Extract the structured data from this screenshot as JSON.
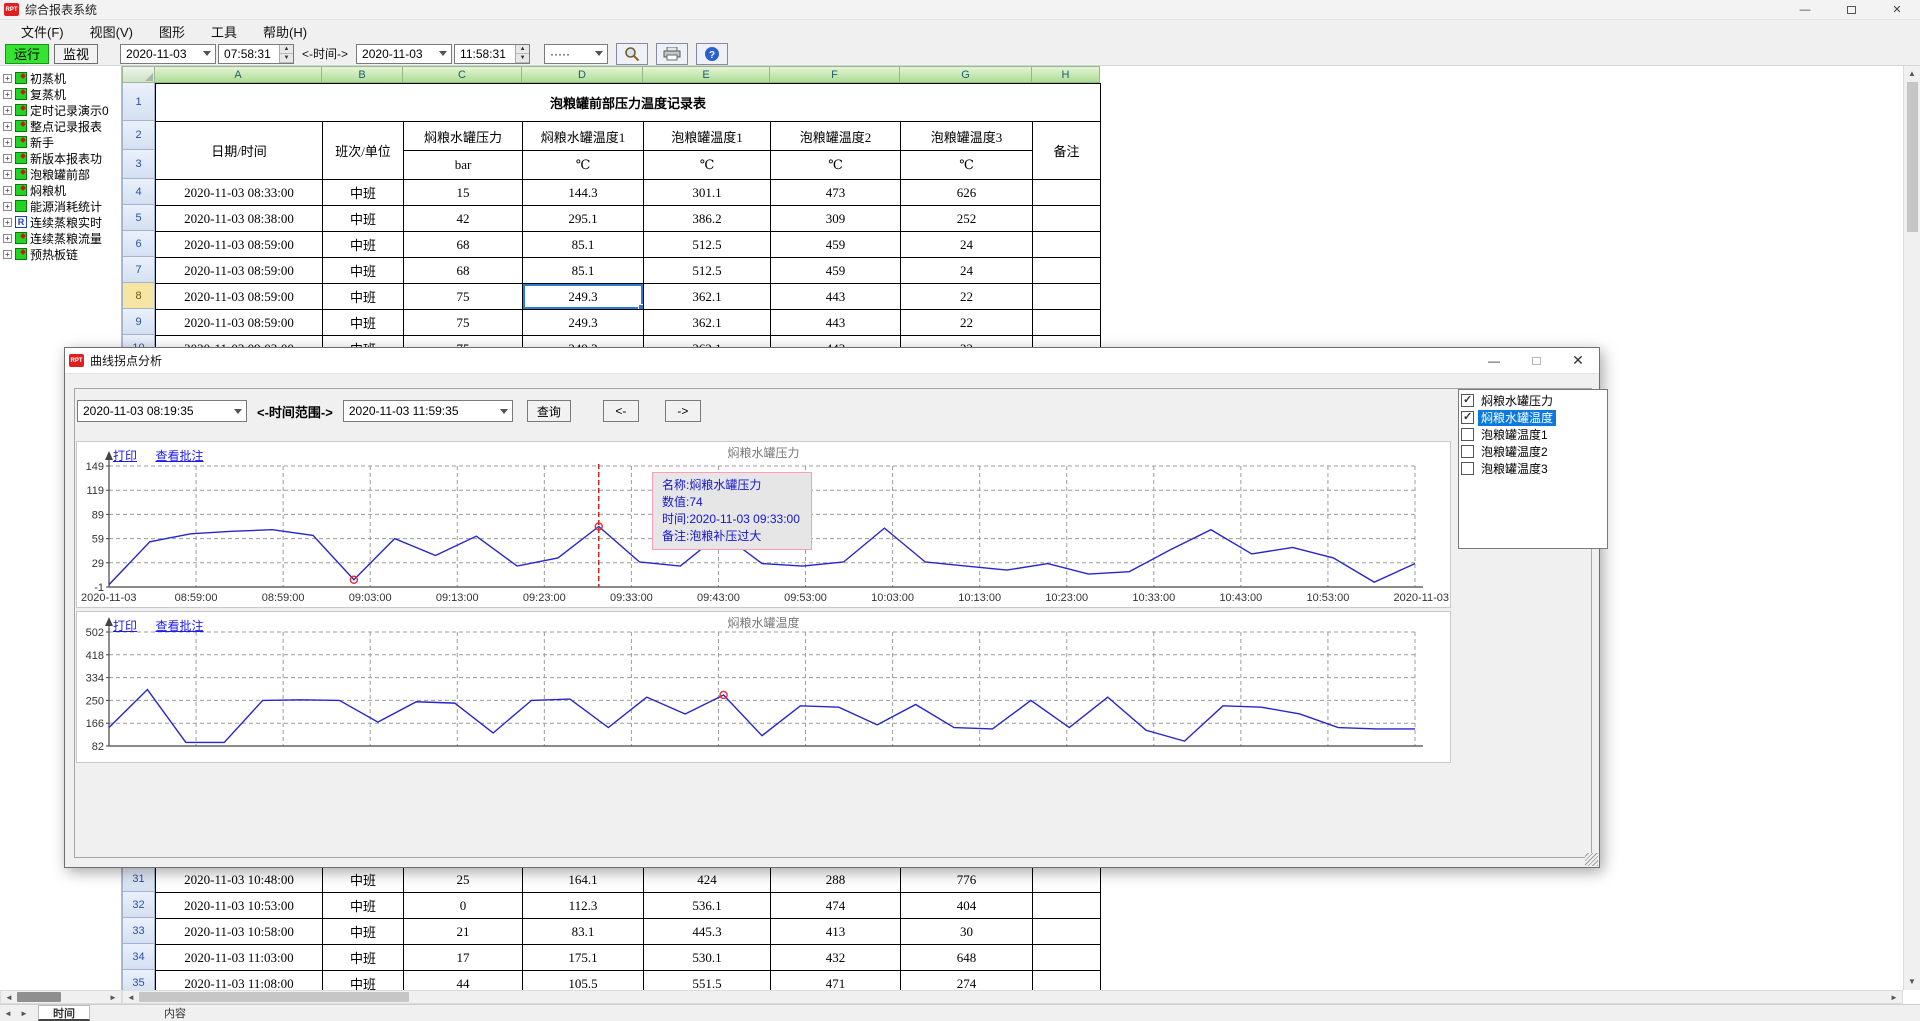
{
  "window": {
    "title": "综合报表系统"
  },
  "menu": {
    "items": [
      "文件(F)",
      "视图(V)",
      "图形",
      "工具",
      "帮助(H)"
    ]
  },
  "toolbar": {
    "run_label": "运行",
    "monitor_label": "监视",
    "start_date": "2020-11-03",
    "start_time": "07:58:31",
    "time_label": "<-时间->",
    "end_date": "2020-11-03",
    "end_time": "11:58:31",
    "style_combo": "·····",
    "icons": [
      "search-icon",
      "printer-icon",
      "help-icon"
    ]
  },
  "sidebar": {
    "items": [
      {
        "label": "初蒸机",
        "icon": "report"
      },
      {
        "label": "复蒸机",
        "icon": "report"
      },
      {
        "label": "定时记录演示0",
        "icon": "report"
      },
      {
        "label": "整点记录报表",
        "icon": "report"
      },
      {
        "label": "新手",
        "icon": "report"
      },
      {
        "label": "新版本报表功",
        "icon": "report"
      },
      {
        "label": "泡粮罐前部",
        "icon": "report"
      },
      {
        "label": "焖粮机",
        "icon": "report"
      },
      {
        "label": "能源消耗统计",
        "icon": "plain"
      },
      {
        "label": "连续蒸粮实时",
        "icon": "r"
      },
      {
        "label": "连续蒸粮流量",
        "icon": "report"
      },
      {
        "label": "预热板链",
        "icon": "report"
      }
    ]
  },
  "sheet": {
    "col_letters": [
      "A",
      "B",
      "C",
      "D",
      "E",
      "F",
      "G",
      "H"
    ],
    "title": "泡粮罐前部压力温度记录表",
    "headers": [
      "日期/时间",
      "班次/单位",
      "焖粮水罐压力",
      "焖粮水罐温度1",
      "泡粮罐温度1",
      "泡粮罐温度2",
      "泡粮罐温度3",
      "备注"
    ],
    "units": [
      "bar",
      "℃",
      "℃",
      "℃",
      "℃"
    ],
    "selection": {
      "row_number": 8,
      "col": 3
    },
    "top_rows": [
      {
        "n": "4",
        "cells": [
          "2020-11-03 08:33:00",
          "中班",
          "15",
          "144.3",
          "301.1",
          "473",
          "626",
          ""
        ]
      },
      {
        "n": "5",
        "cells": [
          "2020-11-03 08:38:00",
          "中班",
          "42",
          "295.1",
          "386.2",
          "309",
          "252",
          ""
        ]
      },
      {
        "n": "6",
        "cells": [
          "2020-11-03 08:59:00",
          "中班",
          "68",
          "85.1",
          "512.5",
          "459",
          "24",
          ""
        ]
      },
      {
        "n": "7",
        "cells": [
          "2020-11-03 08:59:00",
          "中班",
          "68",
          "85.1",
          "512.5",
          "459",
          "24",
          ""
        ]
      },
      {
        "n": "8",
        "cells": [
          "2020-11-03 08:59:00",
          "中班",
          "75",
          "249.3",
          "362.1",
          "443",
          "22",
          ""
        ]
      },
      {
        "n": "9",
        "cells": [
          "2020-11-03 08:59:00",
          "中班",
          "75",
          "249.3",
          "362.1",
          "443",
          "22",
          ""
        ]
      },
      {
        "n": "10",
        "cells": [
          "2020-11-03 09:03:00",
          "中班",
          "75",
          "249.3",
          "362.1",
          "443",
          "22",
          ""
        ]
      }
    ],
    "bottom_rows": [
      {
        "n": "31",
        "cells": [
          "2020-11-03 10:48:00",
          "中班",
          "25",
          "164.1",
          "424",
          "288",
          "776",
          ""
        ]
      },
      {
        "n": "32",
        "cells": [
          "2020-11-03 10:53:00",
          "中班",
          "0",
          "112.3",
          "536.1",
          "474",
          "404",
          ""
        ]
      },
      {
        "n": "33",
        "cells": [
          "2020-11-03 10:58:00",
          "中班",
          "21",
          "83.1",
          "445.3",
          "413",
          "30",
          ""
        ]
      },
      {
        "n": "34",
        "cells": [
          "2020-11-03 11:03:00",
          "中班",
          "17",
          "175.1",
          "530.1",
          "432",
          "648",
          ""
        ]
      },
      {
        "n": "35",
        "cells": [
          "2020-11-03 11:08:00",
          "中班",
          "44",
          "105.5",
          "551.5",
          "471",
          "274",
          ""
        ]
      }
    ]
  },
  "bottom_tabs": {
    "items": [
      "时间",
      "内容"
    ],
    "active": 0
  },
  "dialog": {
    "title": "曲线拐点分析",
    "start_datetime": "2020-11-03 08:19:35",
    "range_label": "<-时间范围->",
    "end_datetime": "2020-11-03 11:59:35",
    "query_label": "查询",
    "prev_label": "<-",
    "next_label": "->",
    "print_label": "打印",
    "notes_label": "查看批注",
    "legend": {
      "items": [
        {
          "label": "焖粮水罐压力",
          "checked": true,
          "selected": false
        },
        {
          "label": "焖粮水罐温度",
          "checked": true,
          "selected": true
        },
        {
          "label": "泡粮罐温度1",
          "checked": false,
          "selected": false
        },
        {
          "label": "泡粮罐温度2",
          "checked": false,
          "selected": false
        },
        {
          "label": "泡粮罐温度3",
          "checked": false,
          "selected": false
        }
      ]
    }
  },
  "chart_data": [
    {
      "type": "line",
      "title": "焖粮水罐压力",
      "ylim": [
        -1,
        149
      ],
      "yticks": [
        149,
        119,
        89,
        59,
        29,
        -1
      ],
      "grid": true,
      "legend_position": "none",
      "xlabels": [
        "2020-11-03",
        "08:59:00",
        "08:59:00",
        "09:03:00",
        "09:13:00",
        "09:23:00",
        "09:33:00",
        "09:43:00",
        "09:53:00",
        "10:03:00",
        "10:13:00",
        "10:23:00",
        "10:33:00",
        "10:43:00",
        "10:53:00",
        "2020-11-03"
      ],
      "values": [
        2,
        55,
        65,
        68,
        70,
        63,
        8,
        59,
        38,
        62,
        25,
        35,
        74,
        30,
        25,
        66,
        28,
        25,
        30,
        72,
        30,
        25,
        20,
        28,
        15,
        18,
        45,
        70,
        40,
        48,
        35,
        5,
        28
      ],
      "markers": [
        6,
        12
      ],
      "cursor_index": 12,
      "tooltip": {
        "lines": [
          "名称:焖粮水罐压力",
          "数值:74",
          "时间:2020-11-03 09:33:00",
          "备注:泡粮补压过大"
        ]
      }
    },
    {
      "type": "line",
      "title": "焖粮水罐温度",
      "ylim": [
        82,
        502
      ],
      "yticks": [
        502,
        418,
        334,
        250,
        166,
        82
      ],
      "grid": true,
      "legend_position": "none",
      "xlabels": [],
      "values": [
        150,
        290,
        95,
        95,
        250,
        252,
        250,
        170,
        245,
        240,
        130,
        250,
        255,
        150,
        262,
        200,
        270,
        120,
        230,
        225,
        160,
        235,
        150,
        145,
        250,
        150,
        262,
        140,
        100,
        230,
        225,
        200,
        150,
        145,
        145
      ],
      "markers": [
        16
      ]
    }
  ]
}
